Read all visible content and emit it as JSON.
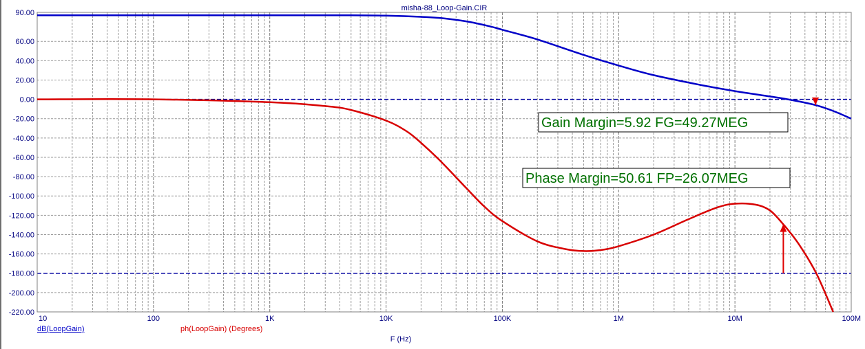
{
  "chart_data": {
    "type": "line",
    "title": "misha-88_Loop-Gain.CIR",
    "xlabel": "F (Hz)",
    "x_scale": "log",
    "xlim": [
      10,
      100000000
    ],
    "x_ticks": [
      {
        "value": 10,
        "label": "10"
      },
      {
        "value": 100,
        "label": "100"
      },
      {
        "value": 1000,
        "label": "1K"
      },
      {
        "value": 10000,
        "label": "10K"
      },
      {
        "value": 100000,
        "label": "100K"
      },
      {
        "value": 1000000,
        "label": "1M"
      },
      {
        "value": 10000000,
        "label": "10M"
      },
      {
        "value": 100000000,
        "label": "100M"
      }
    ],
    "ylim": [
      -220,
      90
    ],
    "y_ticks": [
      {
        "value": 90,
        "label": "90.00"
      },
      {
        "value": 60,
        "label": "60.00"
      },
      {
        "value": 40,
        "label": "40.00"
      },
      {
        "value": 20,
        "label": "20.00"
      },
      {
        "value": 0,
        "label": "0.00"
      },
      {
        "value": -20,
        "label": "-20.00"
      },
      {
        "value": -40,
        "label": "-40.00"
      },
      {
        "value": -60,
        "label": "-60.00"
      },
      {
        "value": -80,
        "label": "-80.00"
      },
      {
        "value": -100,
        "label": "-100.00"
      },
      {
        "value": -120,
        "label": "-120.00"
      },
      {
        "value": -140,
        "label": "-140.00"
      },
      {
        "value": -160,
        "label": "-160.00"
      },
      {
        "value": -180,
        "label": "-180.00"
      },
      {
        "value": -200,
        "label": "-200.00"
      },
      {
        "value": -220,
        "label": "-220.00"
      }
    ],
    "grid": true,
    "reference_lines": [
      {
        "y": 0,
        "color": "#0000a0"
      },
      {
        "y": -180,
        "color": "#0000a0"
      }
    ],
    "series": [
      {
        "name": "dB(LoopGain)",
        "color": "#0000c8",
        "x": [
          10,
          100,
          1000,
          5000,
          10000,
          20000,
          30000,
          50000,
          80000,
          100000,
          200000,
          500000,
          1000000,
          2000000,
          5000000,
          10000000,
          20000000,
          30000000,
          49270000,
          70000000,
          100000000
        ],
        "y": [
          87,
          87,
          87,
          87,
          86.6,
          85.4,
          84,
          80.5,
          75.2,
          72,
          62,
          46,
          35,
          25,
          15,
          8.5,
          3,
          -0.5,
          -5.92,
          -12,
          -20
        ]
      },
      {
        "name": "ph(LoopGain) (Degrees)",
        "color": "#d80000",
        "x": [
          10,
          100,
          1000,
          3000,
          5000,
          10000,
          15000,
          20000,
          30000,
          50000,
          70000,
          100000,
          200000,
          350000,
          500000,
          700000,
          1000000,
          2000000,
          4000000,
          7000000,
          10000000,
          15000000,
          20000000,
          26070000,
          35000000,
          50000000,
          70000000
        ],
        "y": [
          0,
          0,
          -3,
          -7,
          -11,
          -22,
          -33,
          -45,
          -65,
          -93,
          -111,
          -126,
          -147,
          -155,
          -157,
          -156,
          -152,
          -140,
          -124,
          -112,
          -108,
          -109,
          -115,
          -129.39,
          -149,
          -180,
          -220
        ]
      }
    ],
    "markers": [
      {
        "series": "dB(LoopGain)",
        "x": 49270000,
        "from_y": 0,
        "to_y": -5.92
      },
      {
        "series": "ph(LoopGain) (Degrees)",
        "x": 26070000,
        "from_y": -180,
        "to_y": -129.39
      }
    ],
    "annotations": [
      "Gain Margin=5.92 FG=49.27MEG",
      "Phase Margin=50.61 FP=26.07MEG"
    ]
  }
}
